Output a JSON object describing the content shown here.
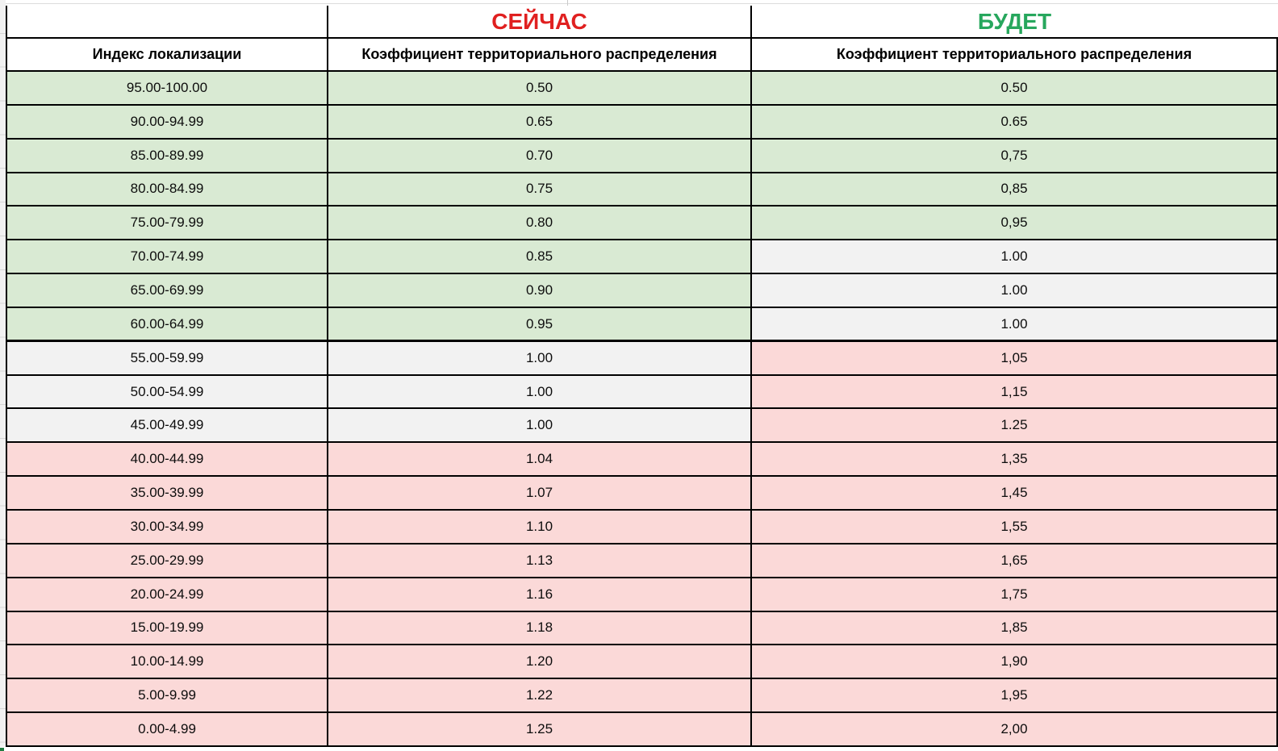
{
  "titles": {
    "now": "СЕЙЧАС",
    "will": "БУДЕТ"
  },
  "colors": {
    "title_now": "#e02020",
    "title_will": "#27a75d",
    "zone_green": "#d9ead3",
    "zone_gray": "#f2f2f2",
    "zone_pink": "#fbd9d8",
    "border": "#000000"
  },
  "table": {
    "headers": {
      "col1": "Индекс локализации",
      "col2": "Коэффициент территориального распределения",
      "col3": "Коэффициент территориального распределения"
    },
    "rows": [
      {
        "range": "95.00-100.00",
        "now": "0.50",
        "will": "0.50",
        "now_zone": "green",
        "will_zone": "green"
      },
      {
        "range": "90.00-94.99",
        "now": "0.65",
        "will": "0.65",
        "now_zone": "green",
        "will_zone": "green"
      },
      {
        "range": "85.00-89.99",
        "now": "0.70",
        "will": "0,75",
        "now_zone": "green",
        "will_zone": "green"
      },
      {
        "range": "80.00-84.99",
        "now": "0.75",
        "will": "0,85",
        "now_zone": "green",
        "will_zone": "green"
      },
      {
        "range": "75.00-79.99",
        "now": "0.80",
        "will": "0,95",
        "now_zone": "green",
        "will_zone": "green"
      },
      {
        "range": "70.00-74.99",
        "now": "0.85",
        "will": "1.00",
        "now_zone": "green",
        "will_zone": "gray"
      },
      {
        "range": "65.00-69.99",
        "now": "0.90",
        "will": "1.00",
        "now_zone": "green",
        "will_zone": "gray"
      },
      {
        "range": "60.00-64.99",
        "now": "0.95",
        "will": "1.00",
        "now_zone": "green",
        "will_zone": "gray",
        "thick_bottom": true
      },
      {
        "range": "55.00-59.99",
        "now": "1.00",
        "will": "1,05",
        "now_zone": "gray",
        "will_zone": "pink"
      },
      {
        "range": "50.00-54.99",
        "now": "1.00",
        "will": "1,15",
        "now_zone": "gray",
        "will_zone": "pink"
      },
      {
        "range": "45.00-49.99",
        "now": "1.00",
        "will": "1.25",
        "now_zone": "gray",
        "will_zone": "pink"
      },
      {
        "range": "40.00-44.99",
        "now": "1.04",
        "will": "1,35",
        "now_zone": "pink",
        "will_zone": "pink"
      },
      {
        "range": "35.00-39.99",
        "now": "1.07",
        "will": "1,45",
        "now_zone": "pink",
        "will_zone": "pink"
      },
      {
        "range": "30.00-34.99",
        "now": "1.10",
        "will": "1,55",
        "now_zone": "pink",
        "will_zone": "pink"
      },
      {
        "range": "25.00-29.99",
        "now": "1.13",
        "will": "1,65",
        "now_zone": "pink",
        "will_zone": "pink"
      },
      {
        "range": "20.00-24.99",
        "now": "1.16",
        "will": "1,75",
        "now_zone": "pink",
        "will_zone": "pink"
      },
      {
        "range": "15.00-19.99",
        "now": "1.18",
        "will": "1,85",
        "now_zone": "pink",
        "will_zone": "pink"
      },
      {
        "range": "10.00-14.99",
        "now": "1.20",
        "will": "1,90",
        "now_zone": "pink",
        "will_zone": "pink"
      },
      {
        "range": "5.00-9.99",
        "now": "1.22",
        "will": "1,95",
        "now_zone": "pink",
        "will_zone": "pink"
      },
      {
        "range": "0.00-4.99",
        "now": "1.25",
        "will": "2,00",
        "now_zone": "pink",
        "will_zone": "pink"
      }
    ]
  }
}
